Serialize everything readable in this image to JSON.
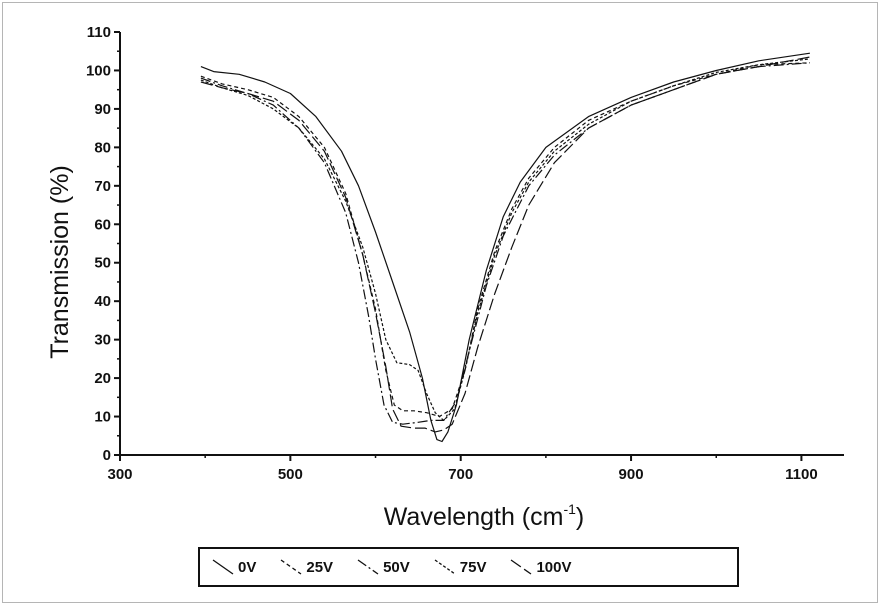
{
  "chart_data": {
    "type": "line",
    "title": "",
    "xlabel": "Wavelength (cm",
    "xlabel_sup": "-1",
    "xlabel_close": ")",
    "ylabel": "Transmission (%)",
    "xlim": [
      300,
      1150
    ],
    "ylim": [
      0,
      110
    ],
    "xticks": [
      300,
      500,
      700,
      900,
      1100
    ],
    "yticks": [
      0,
      10,
      20,
      30,
      40,
      50,
      60,
      70,
      80,
      90,
      100,
      110
    ],
    "grid": false,
    "legend_position": "bottom",
    "series": [
      {
        "name": "0V",
        "dash": "",
        "color": "#111111",
        "points": [
          [
            395,
            101
          ],
          [
            410,
            99.7
          ],
          [
            440,
            99
          ],
          [
            470,
            97
          ],
          [
            500,
            94
          ],
          [
            530,
            88
          ],
          [
            560,
            79
          ],
          [
            580,
            70
          ],
          [
            600,
            58
          ],
          [
            620,
            45
          ],
          [
            640,
            32
          ],
          [
            655,
            20
          ],
          [
            665,
            9
          ],
          [
            672,
            4
          ],
          [
            678,
            3.5
          ],
          [
            685,
            6
          ],
          [
            695,
            13
          ],
          [
            710,
            30
          ],
          [
            730,
            48
          ],
          [
            750,
            62
          ],
          [
            770,
            71
          ],
          [
            800,
            80
          ],
          [
            850,
            88
          ],
          [
            900,
            93
          ],
          [
            950,
            97
          ],
          [
            1000,
            100
          ],
          [
            1050,
            102.5
          ],
          [
            1110,
            104.5
          ]
        ]
      },
      {
        "name": "25V",
        "dash": "4,3",
        "color": "#111111",
        "points": [
          [
            395,
            98.5
          ],
          [
            420,
            96.5
          ],
          [
            450,
            95
          ],
          [
            480,
            93
          ],
          [
            510,
            88
          ],
          [
            540,
            80
          ],
          [
            565,
            68
          ],
          [
            585,
            52
          ],
          [
            600,
            38
          ],
          [
            612,
            22
          ],
          [
            622,
            13
          ],
          [
            632,
            11.5
          ],
          [
            645,
            11.5
          ],
          [
            660,
            11
          ],
          [
            675,
            10
          ],
          [
            690,
            12
          ],
          [
            705,
            22
          ],
          [
            720,
            38
          ],
          [
            740,
            53
          ],
          [
            760,
            64
          ],
          [
            780,
            72
          ],
          [
            810,
            80
          ],
          [
            850,
            87
          ],
          [
            900,
            92
          ],
          [
            950,
            96
          ],
          [
            1000,
            99
          ],
          [
            1050,
            101.5
          ],
          [
            1110,
            102
          ]
        ]
      },
      {
        "name": "50V",
        "dash": "10,3,2,3",
        "color": "#111111",
        "points": [
          [
            395,
            98
          ],
          [
            420,
            96
          ],
          [
            450,
            94
          ],
          [
            480,
            91
          ],
          [
            510,
            85
          ],
          [
            540,
            76
          ],
          [
            565,
            63
          ],
          [
            580,
            50
          ],
          [
            592,
            36
          ],
          [
            600,
            25
          ],
          [
            610,
            13
          ],
          [
            620,
            8.5
          ],
          [
            632,
            8
          ],
          [
            650,
            8.5
          ],
          [
            665,
            9
          ],
          [
            680,
            9
          ],
          [
            695,
            14
          ],
          [
            710,
            27
          ],
          [
            730,
            44
          ],
          [
            750,
            57
          ],
          [
            780,
            70
          ],
          [
            810,
            78
          ],
          [
            850,
            85
          ],
          [
            900,
            91
          ],
          [
            950,
            95
          ],
          [
            1000,
            99
          ],
          [
            1050,
            101
          ],
          [
            1110,
            102
          ]
        ]
      },
      {
        "name": "75V",
        "dash": "3,2",
        "color": "#111111",
        "points": [
          [
            395,
            97.5
          ],
          [
            420,
            95.5
          ],
          [
            450,
            93.5
          ],
          [
            480,
            90
          ],
          [
            510,
            85
          ],
          [
            540,
            77
          ],
          [
            565,
            66
          ],
          [
            585,
            54
          ],
          [
            600,
            42
          ],
          [
            612,
            30
          ],
          [
            625,
            24
          ],
          [
            640,
            23.5
          ],
          [
            650,
            22
          ],
          [
            660,
            16
          ],
          [
            670,
            11
          ],
          [
            680,
            9
          ],
          [
            693,
            12
          ],
          [
            705,
            22
          ],
          [
            720,
            37
          ],
          [
            740,
            52
          ],
          [
            760,
            63
          ],
          [
            780,
            71
          ],
          [
            810,
            79
          ],
          [
            850,
            86
          ],
          [
            900,
            92
          ],
          [
            950,
            96
          ],
          [
            1000,
            99.5
          ],
          [
            1050,
            101.5
          ],
          [
            1110,
            103
          ]
        ]
      },
      {
        "name": "100V",
        "dash": "12,4",
        "color": "#111111",
        "points": [
          [
            395,
            97
          ],
          [
            420,
            95.5
          ],
          [
            450,
            94
          ],
          [
            480,
            92
          ],
          [
            510,
            87
          ],
          [
            540,
            79
          ],
          [
            565,
            67
          ],
          [
            585,
            52
          ],
          [
            600,
            37
          ],
          [
            612,
            23
          ],
          [
            620,
            12
          ],
          [
            630,
            7.5
          ],
          [
            645,
            7
          ],
          [
            658,
            7
          ],
          [
            670,
            6
          ],
          [
            680,
            6.5
          ],
          [
            690,
            8
          ],
          [
            705,
            16
          ],
          [
            720,
            28
          ],
          [
            740,
            42
          ],
          [
            760,
            54
          ],
          [
            780,
            65
          ],
          [
            810,
            76
          ],
          [
            850,
            85
          ],
          [
            900,
            91
          ],
          [
            950,
            95
          ],
          [
            1000,
            99
          ],
          [
            1050,
            101
          ],
          [
            1110,
            103.5
          ]
        ]
      }
    ]
  }
}
